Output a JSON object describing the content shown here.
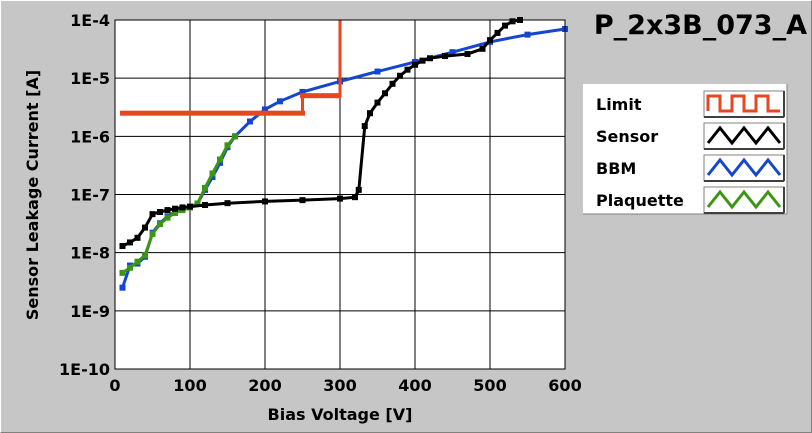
{
  "chart_data": {
    "type": "line",
    "title": "P_2x3B_073_A",
    "xlabel": "Bias Voltage [V]",
    "ylabel": "Sensor Leakage Current [A]",
    "xlim": [
      0,
      600
    ],
    "ylim": [
      1e-10,
      0.0001
    ],
    "yscale": "log",
    "grid": true,
    "legend_position": "right",
    "x_ticks": [
      "0",
      "100",
      "200",
      "300",
      "400",
      "500",
      "600"
    ],
    "y_ticks": [
      "1E-4",
      "1E-5",
      "1E-6",
      "1E-7",
      "1E-8",
      "1E-9",
      "1E-10"
    ],
    "series": [
      {
        "name": "Limit",
        "color": "#e8461e",
        "legend_icon": "square-wave-icon",
        "points": [
          [
            10,
            2.5e-06
          ],
          [
            250,
            2.5e-06
          ],
          [
            250,
            5e-06
          ],
          [
            300,
            5e-06
          ],
          [
            300,
            0.0001
          ]
        ]
      },
      {
        "name": "Sensor",
        "color": "#000000",
        "legend_icon": "zigzag-icon",
        "points": [
          [
            10,
            1.3e-08
          ],
          [
            20,
            1.5e-08
          ],
          [
            30,
            1.8e-08
          ],
          [
            40,
            2.7e-08
          ],
          [
            50,
            4.6e-08
          ],
          [
            60,
            5e-08
          ],
          [
            70,
            5.4e-08
          ],
          [
            80,
            5.7e-08
          ],
          [
            90,
            6e-08
          ],
          [
            100,
            6.2e-08
          ],
          [
            120,
            6.6e-08
          ],
          [
            150,
            7.1e-08
          ],
          [
            200,
            7.6e-08
          ],
          [
            250,
            8e-08
          ],
          [
            300,
            8.5e-08
          ],
          [
            320,
            9e-08
          ],
          [
            325,
            1.2e-07
          ],
          [
            333,
            1.5e-06
          ],
          [
            340,
            2.5e-06
          ],
          [
            350,
            3.8e-06
          ],
          [
            360,
            5.5e-06
          ],
          [
            370,
            8e-06
          ],
          [
            380,
            1.1e-05
          ],
          [
            390,
            1.4e-05
          ],
          [
            400,
            1.7e-05
          ],
          [
            410,
            2e-05
          ],
          [
            420,
            2.2e-05
          ],
          [
            440,
            2.4e-05
          ],
          [
            470,
            2.6e-05
          ],
          [
            490,
            3.2e-05
          ],
          [
            500,
            4.5e-05
          ],
          [
            510,
            6e-05
          ],
          [
            520,
            8e-05
          ],
          [
            530,
            9.5e-05
          ],
          [
            540,
            0.0001
          ]
        ]
      },
      {
        "name": "BBM",
        "color": "#1446d2",
        "legend_icon": "zigzag-icon",
        "points": [
          [
            10,
            2.5e-09
          ],
          [
            20,
            6e-09
          ],
          [
            30,
            6.5e-09
          ],
          [
            40,
            8.5e-09
          ],
          [
            50,
            2.2e-08
          ],
          [
            60,
            3.2e-08
          ],
          [
            70,
            4.2e-08
          ],
          [
            80,
            5e-08
          ],
          [
            90,
            5.5e-08
          ],
          [
            100,
            6e-08
          ],
          [
            110,
            7e-08
          ],
          [
            120,
            1.2e-07
          ],
          [
            130,
            2e-07
          ],
          [
            140,
            3.5e-07
          ],
          [
            150,
            6.5e-07
          ],
          [
            160,
            1e-06
          ],
          [
            180,
            1.8e-06
          ],
          [
            200,
            2.9e-06
          ],
          [
            220,
            4e-06
          ],
          [
            250,
            5.8e-06
          ],
          [
            300,
            8.8e-06
          ],
          [
            350,
            1.3e-05
          ],
          [
            400,
            1.9e-05
          ],
          [
            450,
            2.8e-05
          ],
          [
            500,
            4.2e-05
          ],
          [
            550,
            5.6e-05
          ],
          [
            600,
            7e-05
          ]
        ]
      },
      {
        "name": "Plaquette",
        "color": "#3c9614",
        "legend_icon": "zigzag-icon",
        "points": [
          [
            10,
            4.5e-09
          ],
          [
            20,
            5.5e-09
          ],
          [
            30,
            7e-09
          ],
          [
            40,
            9e-09
          ],
          [
            50,
            2.1e-08
          ],
          [
            60,
            3.1e-08
          ],
          [
            70,
            4e-08
          ],
          [
            80,
            4.8e-08
          ],
          [
            90,
            5.4e-08
          ],
          [
            100,
            6e-08
          ],
          [
            110,
            7e-08
          ],
          [
            120,
            1.3e-07
          ],
          [
            130,
            2.3e-07
          ],
          [
            140,
            4e-07
          ],
          [
            150,
            7e-07
          ],
          [
            160,
            1e-06
          ]
        ]
      }
    ]
  }
}
